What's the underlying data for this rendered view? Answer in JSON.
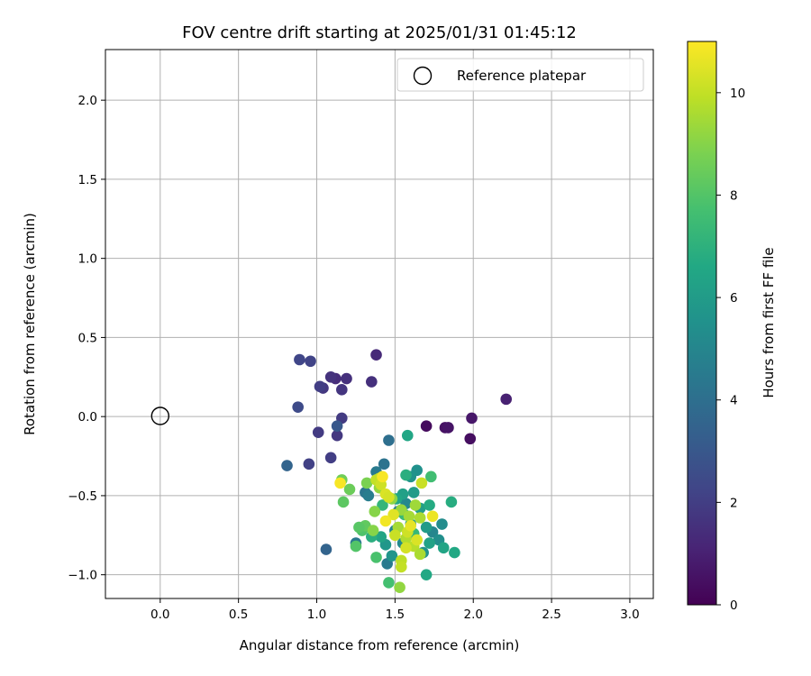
{
  "chart_data": {
    "type": "scatter",
    "title": "FOV centre drift starting at 2025/01/31 01:45:12",
    "xlabel": "Angular distance from reference (arcmin)",
    "ylabel": "Rotation from reference (arcmin)",
    "xlim": [
      -0.35,
      3.15
    ],
    "ylim": [
      -1.15,
      2.32
    ],
    "xticks": [
      "0.0",
      "0.5",
      "1.0",
      "1.5",
      "2.0",
      "2.5",
      "3.0"
    ],
    "yticks": [
      "−1.0",
      "−0.5",
      "0.0",
      "0.5",
      "1.0",
      "1.5",
      "2.0"
    ],
    "grid": true,
    "legend": {
      "placement": "top-right",
      "entries": [
        "Reference platepar"
      ]
    },
    "reference_point": {
      "x": 0.0,
      "y": 0.0,
      "label": "Reference platepar"
    },
    "colorbar": {
      "label": "Hours from first FF file",
      "min": 0,
      "max": 11,
      "ticks": [
        "0",
        "2",
        "4",
        "6",
        "8",
        "10"
      ],
      "colormap": "viridis"
    },
    "series": [
      {
        "columns": [
          "x",
          "y",
          "hours"
        ],
        "points": [
          [
            1.7,
            -0.06,
            0.3
          ],
          [
            1.82,
            -0.07,
            0.5
          ],
          [
            1.84,
            -0.07,
            0.6
          ],
          [
            1.98,
            -0.14,
            0.4
          ],
          [
            1.99,
            -0.01,
            0.7
          ],
          [
            2.21,
            0.11,
            1.0
          ],
          [
            1.38,
            0.39,
            1.3
          ],
          [
            1.12,
            0.24,
            1.4
          ],
          [
            1.19,
            0.24,
            1.5
          ],
          [
            1.09,
            0.25,
            1.6
          ],
          [
            1.35,
            0.22,
            1.5
          ],
          [
            1.16,
            0.17,
            1.7
          ],
          [
            1.04,
            0.18,
            1.8
          ],
          [
            1.02,
            0.19,
            2.0
          ],
          [
            0.89,
            0.36,
            2.3
          ],
          [
            0.96,
            0.35,
            2.2
          ],
          [
            1.16,
            -0.01,
            1.9
          ],
          [
            1.13,
            -0.12,
            1.8
          ],
          [
            1.01,
            -0.1,
            1.9
          ],
          [
            1.09,
            -0.26,
            2.0
          ],
          [
            0.95,
            -0.3,
            2.1
          ],
          [
            0.88,
            0.06,
            2.5
          ],
          [
            1.13,
            -0.06,
            3.0
          ],
          [
            0.81,
            -0.31,
            3.5
          ],
          [
            1.06,
            -0.84,
            3.5
          ],
          [
            1.46,
            -0.15,
            4.0
          ],
          [
            1.43,
            -0.3,
            4.2
          ],
          [
            1.38,
            -0.35,
            4.5
          ],
          [
            1.31,
            -0.48,
            4.3
          ],
          [
            1.33,
            -0.5,
            4.6
          ],
          [
            1.25,
            -0.8,
            4.4
          ],
          [
            1.45,
            -0.93,
            4.5
          ],
          [
            1.52,
            -0.6,
            4.8
          ],
          [
            1.5,
            -0.72,
            5.0
          ],
          [
            1.55,
            -0.8,
            5.2
          ],
          [
            1.57,
            -0.55,
            5.1
          ],
          [
            1.64,
            -0.34,
            5.5
          ],
          [
            1.68,
            -0.86,
            5.6
          ],
          [
            1.74,
            -0.73,
            5.0
          ],
          [
            1.8,
            -0.68,
            5.3
          ],
          [
            1.78,
            -0.78,
            5.4
          ],
          [
            1.6,
            -0.38,
            5.6
          ],
          [
            1.58,
            -0.12,
            6.5
          ],
          [
            1.62,
            -0.48,
            6.0
          ],
          [
            1.55,
            -0.49,
            6.2
          ],
          [
            1.66,
            -0.58,
            6.1
          ],
          [
            1.6,
            -0.68,
            5.9
          ],
          [
            1.7,
            -0.7,
            6.0
          ],
          [
            1.72,
            -0.8,
            6.3
          ],
          [
            1.81,
            -0.83,
            6.4
          ],
          [
            1.88,
            -0.86,
            6.6
          ],
          [
            1.86,
            -0.54,
            6.8
          ],
          [
            1.72,
            -0.56,
            6.7
          ],
          [
            1.7,
            -1.0,
            6.6
          ],
          [
            1.57,
            -0.37,
            6.9
          ],
          [
            1.51,
            -0.52,
            6.5
          ],
          [
            1.44,
            -0.81,
            5.8
          ],
          [
            1.48,
            -0.88,
            5.7
          ],
          [
            1.41,
            -0.76,
            6.4
          ],
          [
            1.35,
            -0.76,
            6.9
          ],
          [
            1.42,
            -0.56,
            7.2
          ],
          [
            1.73,
            -0.38,
            7.6
          ],
          [
            1.56,
            -0.62,
            7.4
          ],
          [
            1.62,
            -0.74,
            7.3
          ],
          [
            1.46,
            -1.05,
            7.7
          ],
          [
            1.38,
            -0.89,
            7.8
          ],
          [
            1.25,
            -0.82,
            8.0
          ],
          [
            1.29,
            -0.72,
            7.9
          ],
          [
            1.31,
            -0.69,
            8.3
          ],
          [
            1.27,
            -0.7,
            8.1
          ],
          [
            1.21,
            -0.46,
            8.5
          ],
          [
            1.17,
            -0.54,
            8.2
          ],
          [
            1.16,
            -0.4,
            8.6
          ],
          [
            1.32,
            -0.42,
            8.8
          ],
          [
            1.37,
            -0.6,
            9.0
          ],
          [
            1.4,
            -0.45,
            9.2
          ],
          [
            1.48,
            -0.52,
            9.1
          ],
          [
            1.54,
            -0.59,
            9.3
          ],
          [
            1.59,
            -0.63,
            9.5
          ],
          [
            1.63,
            -0.56,
            9.4
          ],
          [
            1.66,
            -0.64,
            9.6
          ],
          [
            1.52,
            -0.7,
            9.5
          ],
          [
            1.57,
            -0.77,
            9.7
          ],
          [
            1.62,
            -0.82,
            9.8
          ],
          [
            1.66,
            -0.87,
            9.6
          ],
          [
            1.54,
            -0.91,
            9.9
          ],
          [
            1.54,
            -0.95,
            10.0
          ],
          [
            1.53,
            -1.08,
            9.2
          ],
          [
            1.36,
            -0.72,
            9.0
          ],
          [
            1.4,
            -0.39,
            9.8
          ],
          [
            1.38,
            -0.4,
            10.0
          ],
          [
            1.41,
            -0.43,
            10.2
          ],
          [
            1.44,
            -0.49,
            10.4
          ],
          [
            1.46,
            -0.51,
            10.3
          ],
          [
            1.49,
            -0.62,
            10.5
          ],
          [
            1.5,
            -0.75,
            10.1
          ],
          [
            1.58,
            -0.73,
            10.2
          ],
          [
            1.6,
            -0.69,
            10.6
          ],
          [
            1.64,
            -0.78,
            10.4
          ],
          [
            1.57,
            -0.83,
            10.3
          ],
          [
            1.67,
            -0.42,
            10.1
          ],
          [
            1.74,
            -0.63,
            10.7
          ],
          [
            1.44,
            -0.66,
            10.8
          ],
          [
            1.15,
            -0.42,
            10.9
          ],
          [
            1.42,
            -0.38,
            10.9
          ]
        ]
      }
    ]
  }
}
